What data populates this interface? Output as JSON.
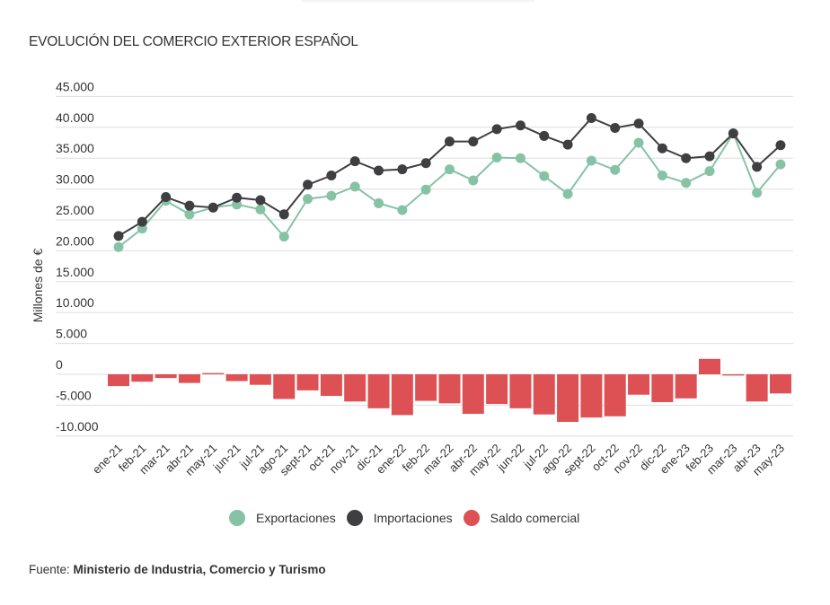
{
  "title": "EVOLUCIÓN DEL COMERCIO EXTERIOR ESPAÑOL",
  "source": {
    "prefix": "Fuente: ",
    "name": "Ministerio de Industria, Comercio y Turismo"
  },
  "colors": {
    "exportaciones": "#86c3a6",
    "importaciones": "#3f3f42",
    "saldo": "#dd5155",
    "grid": "#dedede",
    "text": "#333333"
  },
  "chart_data": {
    "type": "bar+line",
    "title": "EVOLUCIÓN DEL COMERCIO EXTERIOR ESPAÑOL",
    "xlabel": "",
    "ylabel": "Millones de €",
    "ylim": [
      -10000,
      45000
    ],
    "yticks": [
      45000,
      40000,
      35000,
      30000,
      25000,
      20000,
      15000,
      10000,
      5000,
      0,
      -5000,
      -10000
    ],
    "ytick_labels": [
      "45.000",
      "40.000",
      "35.000",
      "30.000",
      "25.000",
      "20.000",
      "15.000",
      "10.000",
      "5.000",
      "0",
      "-5.000",
      "-10.000"
    ],
    "grid": true,
    "legend_position": "bottom-center",
    "categories": [
      "ene-21",
      "feb-21",
      "mar-21",
      "abr-21",
      "may-21",
      "jun-21",
      "jul-21",
      "ago-21",
      "sept-21",
      "oct-21",
      "nov-21",
      "dic-21",
      "ene-22",
      "feb-22",
      "mar-22",
      "abr-22",
      "may-22",
      "jun-22",
      "jul-22",
      "ago-22",
      "sept-22",
      "oct-22",
      "nov-22",
      "dic-22",
      "ene-23",
      "feb-23",
      "mar-23",
      "abr-23",
      "may-23"
    ],
    "series": [
      {
        "name": "Exportaciones",
        "type": "line",
        "values": [
          20600,
          23600,
          28100,
          25900,
          27000,
          27500,
          26700,
          22300,
          28400,
          28900,
          30400,
          27700,
          26600,
          29900,
          33200,
          31400,
          35100,
          35000,
          32100,
          29200,
          34600,
          33100,
          37500,
          32200,
          31000,
          32900,
          39000,
          29400,
          34000
        ]
      },
      {
        "name": "Importaciones",
        "type": "line",
        "values": [
          22400,
          24700,
          28700,
          27300,
          27000,
          28600,
          28200,
          25900,
          30700,
          32200,
          34500,
          33000,
          33200,
          34200,
          37700,
          37700,
          39700,
          40300,
          38600,
          37200,
          41500,
          39900,
          40600,
          36600,
          35000,
          35300,
          39000,
          33600,
          37100
        ]
      },
      {
        "name": "Saldo comercial",
        "type": "bar",
        "values": [
          -1900,
          -1200,
          -600,
          -1400,
          200,
          -1100,
          -1700,
          -4000,
          -2600,
          -3500,
          -4400,
          -5500,
          -6600,
          -4300,
          -4700,
          -6400,
          -4800,
          -5500,
          -6500,
          -7700,
          -7000,
          -6800,
          -3300,
          -4500,
          -3900,
          2500,
          -200,
          -4400,
          -3100
        ]
      }
    ]
  },
  "legend": [
    {
      "label": "Exportaciones",
      "key": "exportaciones"
    },
    {
      "label": "Importaciones",
      "key": "importaciones"
    },
    {
      "label": "Saldo comercial",
      "key": "saldo"
    }
  ]
}
